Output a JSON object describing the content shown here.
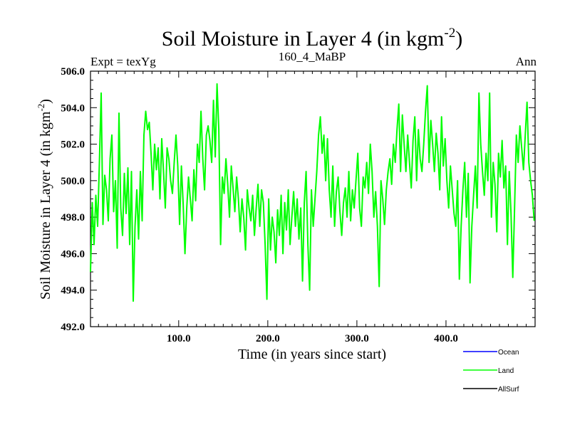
{
  "chart_data": {
    "type": "line",
    "title": "Soil Moisture in Layer 4 (in kgm",
    "title_sup": "-2",
    "title_end": ")",
    "subtitle_left": "Expt = texYg",
    "subtitle_center": "160_4_MaBP",
    "subtitle_right": "Ann",
    "xlabel": "Time (in years since start)",
    "ylabel": "Soil Moisture in Layer 4 (in kgm",
    "ylabel_sup": "-2",
    "ylabel_end": ")",
    "xlim": [
      1,
      500
    ],
    "ylim": [
      492.0,
      506.0
    ],
    "x_ticks": [
      100,
      200,
      300,
      400
    ],
    "x_tick_labels": [
      "100.0",
      "200.0",
      "300.0",
      "400.0"
    ],
    "y_ticks": [
      492,
      494,
      496,
      498,
      500,
      502,
      504,
      506
    ],
    "y_tick_labels": [
      "492.0",
      "494.0",
      "496.0",
      "498.0",
      "500.0",
      "502.0",
      "504.0",
      "506.0"
    ],
    "legend_position": "bottom-right",
    "legend": [
      {
        "name": "Ocean",
        "color": "#0000ff"
      },
      {
        "name": "Land",
        "color": "#00ff00"
      },
      {
        "name": "AllSurf",
        "color": "#000000"
      }
    ],
    "series": [
      {
        "name": "Land",
        "color": "#00ff00",
        "x": [
          1,
          3,
          5,
          7,
          9,
          11,
          13,
          15,
          17,
          19,
          21,
          23,
          25,
          27,
          29,
          31,
          33,
          35,
          37,
          39,
          41,
          43,
          45,
          47,
          49,
          51,
          53,
          55,
          57,
          59,
          61,
          63,
          65,
          67,
          69,
          71,
          73,
          75,
          77,
          79,
          81,
          83,
          85,
          87,
          89,
          91,
          93,
          95,
          97,
          99,
          101,
          103,
          105,
          107,
          109,
          111,
          113,
          115,
          117,
          119,
          121,
          123,
          125,
          127,
          129,
          131,
          133,
          135,
          137,
          139,
          141,
          143,
          145,
          147,
          149,
          151,
          153,
          155,
          157,
          159,
          161,
          163,
          165,
          167,
          169,
          171,
          173,
          175,
          177,
          179,
          181,
          183,
          185,
          187,
          189,
          191,
          193,
          195,
          197,
          199,
          201,
          203,
          205,
          207,
          209,
          211,
          213,
          215,
          217,
          219,
          221,
          223,
          225,
          227,
          229,
          231,
          233,
          235,
          237,
          239,
          241,
          243,
          245,
          247,
          249,
          251,
          253,
          255,
          257,
          259,
          261,
          263,
          265,
          267,
          269,
          271,
          273,
          275,
          277,
          279,
          281,
          283,
          285,
          287,
          289,
          291,
          293,
          295,
          297,
          299,
          301,
          303,
          305,
          307,
          309,
          311,
          313,
          315,
          317,
          319,
          321,
          323,
          325,
          327,
          329,
          331,
          333,
          335,
          337,
          339,
          341,
          343,
          345,
          347,
          349,
          351,
          353,
          355,
          357,
          359,
          361,
          363,
          365,
          367,
          369,
          371,
          373,
          375,
          377,
          379,
          381,
          383,
          385,
          387,
          389,
          391,
          393,
          395,
          397,
          399,
          401,
          403,
          405,
          407,
          409,
          411,
          413,
          415,
          417,
          419,
          421,
          423,
          425,
          427,
          429,
          431,
          433,
          435,
          437,
          439,
          441,
          443,
          445,
          447,
          449,
          451,
          453,
          455,
          457,
          459,
          461,
          463,
          465,
          467,
          469,
          471,
          473,
          475,
          477,
          479,
          481,
          483,
          485,
          487,
          489,
          491,
          493,
          495,
          497,
          499
        ],
        "values": [
          495.0,
          498.8,
          496.5,
          499.2,
          497.5,
          501.0,
          504.8,
          497.6,
          500.3,
          499.5,
          497.8,
          501.2,
          502.5,
          498.3,
          500.0,
          496.3,
          503.7,
          498.5,
          497.0,
          500.4,
          498.2,
          500.7,
          496.5,
          500.5,
          493.4,
          497.5,
          499.5,
          496.8,
          500.5,
          497.8,
          502.5,
          503.8,
          502.8,
          503.2,
          501.5,
          499.5,
          502.0,
          500.6,
          501.8,
          499.0,
          502.3,
          500.5,
          498.5,
          501.8,
          501.2,
          500.0,
          499.3,
          501.0,
          502.5,
          500.8,
          497.6,
          500.8,
          498.7,
          496.0,
          498.5,
          500.2,
          499.0,
          497.8,
          500.6,
          498.9,
          502.0,
          501.0,
          503.8,
          501.2,
          499.5,
          502.5,
          503.0,
          502.2,
          501.0,
          504.4,
          501.3,
          505.3,
          502.8,
          496.5,
          500.2,
          499.3,
          501.2,
          499.8,
          498.0,
          500.8,
          499.6,
          498.3,
          500.2,
          499.0,
          497.2,
          499.0,
          498.0,
          496.2,
          499.5,
          498.5,
          497.8,
          499.2,
          497.0,
          498.5,
          499.8,
          497.5,
          499.5,
          498.8,
          496.5,
          493.5,
          499.0,
          496.2,
          498.0,
          497.2,
          495.5,
          498.4,
          497.0,
          499.2,
          496.0,
          498.8,
          497.3,
          499.5,
          496.5,
          498.0,
          499.4,
          497.5,
          499.0,
          496.8,
          498.5,
          494.5,
          498.8,
          500.5,
          496.5,
          494.0,
          499.5,
          497.5,
          499.0,
          500.5,
          502.5,
          503.5,
          501.5,
          502.5,
          500.0,
          502.3,
          499.5,
          498.0,
          500.8,
          497.5,
          499.4,
          500.2,
          498.3,
          497.0,
          498.8,
          499.6,
          498.0,
          500.5,
          497.8,
          499.5,
          498.5,
          500.0,
          501.5,
          498.5,
          497.5,
          500.2,
          499.6,
          501.0,
          499.3,
          502.0,
          500.5,
          498.0,
          499.4,
          497.5,
          494.2,
          500.0,
          499.0,
          497.6,
          499.5,
          500.5,
          501.2,
          499.8,
          502.0,
          501.0,
          502.8,
          504.2,
          500.5,
          503.6,
          502.0,
          500.5,
          502.5,
          501.0,
          499.6,
          502.2,
          503.5,
          500.0,
          502.8,
          501.2,
          500.5,
          502.0,
          503.8,
          505.2,
          501.0,
          503.3,
          502.0,
          500.5,
          502.6,
          501.5,
          499.5,
          503.5,
          500.8,
          502.3,
          500.0,
          498.5,
          500.8,
          499.5,
          498.2,
          497.5,
          500.0,
          494.6,
          497.5,
          499.5,
          501.0,
          498.0,
          500.4,
          494.4,
          497.5,
          499.2,
          500.8,
          498.5,
          504.8,
          502.0,
          500.5,
          499.2,
          501.5,
          500.0,
          504.8,
          498.0,
          501.0,
          499.8,
          497.2,
          501.5,
          500.2,
          502.2,
          499.6,
          500.8,
          496.5,
          500.5,
          498.2,
          494.7,
          498.5,
          502.5,
          501.0,
          503.0,
          501.8,
          500.6,
          502.5,
          504.3,
          501.0,
          500.0,
          499.2,
          497.8
        ]
      }
    ]
  }
}
